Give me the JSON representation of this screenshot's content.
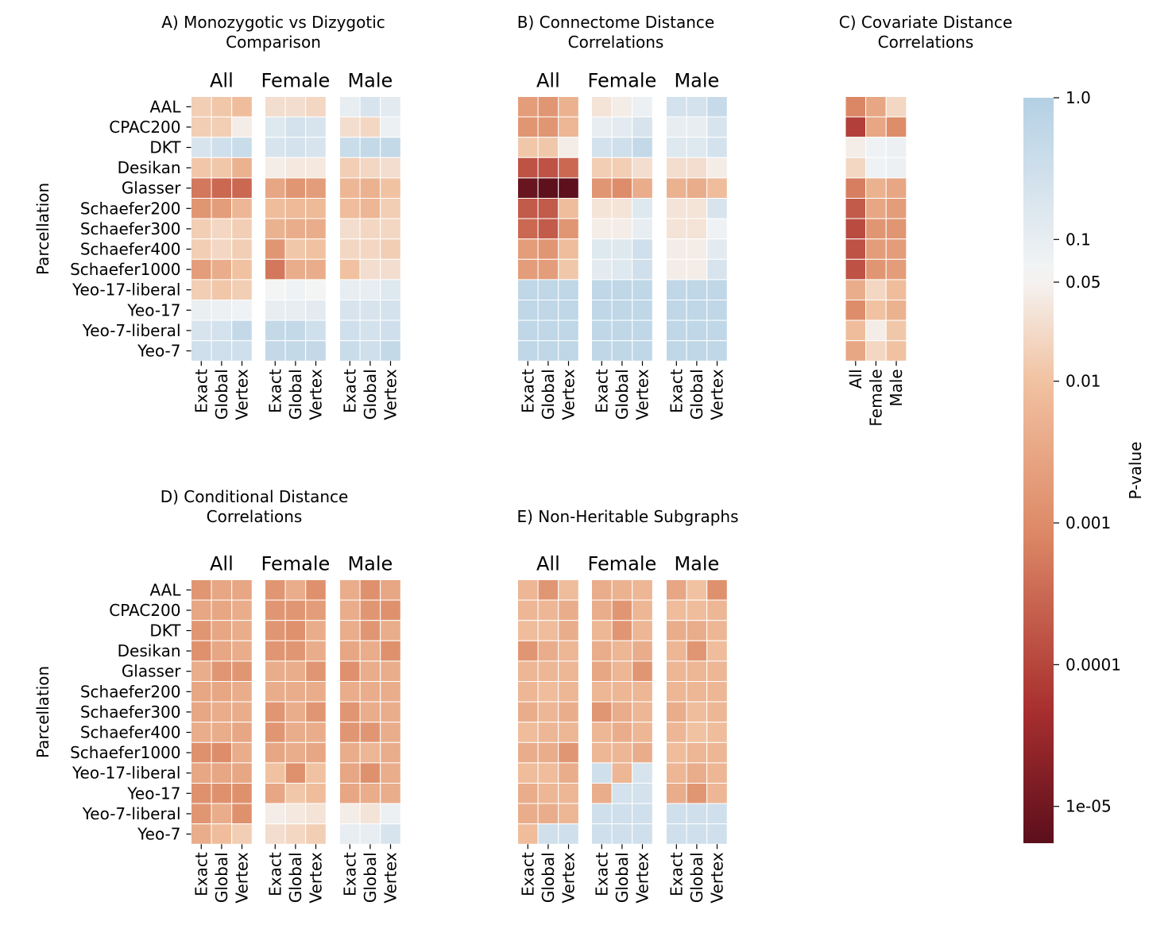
{
  "figure": {
    "ylabel": "Parcellation"
  },
  "parcellations": [
    "AAL",
    "CPAC200",
    "DKT",
    "Desikan",
    "Glasser",
    "Schaefer200",
    "Schaefer300",
    "Schaefer400",
    "Schaefer1000",
    "Yeo-17-liberal",
    "Yeo-17",
    "Yeo-7-liberal",
    "Yeo-7"
  ],
  "groups": [
    "All",
    "Female",
    "Male"
  ],
  "methods": [
    "Exact",
    "Global",
    "Vertex"
  ],
  "colorbar": {
    "label": "P-value",
    "ticks": [
      "1.0",
      "0.1",
      "0.05",
      "0.01",
      "0.001",
      "0.0001",
      "1e-05"
    ],
    "range": [
      5.5e-06,
      1.0
    ],
    "colors": {
      "high": "#b4d0e4",
      "threshold": "#f5f5f5",
      "mid": "#f1c2a1",
      "strong": "#dd8a67",
      "deep": "#a92f2f",
      "darkest": "#5b0f1c"
    }
  },
  "chart_data": [
    {
      "type": "heatmap",
      "panel": "A",
      "title_line1": "A) Monozygotic vs Dizygotic",
      "title_line2": "Comparison",
      "x_groups": [
        "All",
        "Female",
        "Male"
      ],
      "x": [
        "Exact",
        "Global",
        "Vertex"
      ],
      "y": [
        "AAL",
        "CPAC200",
        "DKT",
        "Desikan",
        "Glasser",
        "Schaefer200",
        "Schaefer300",
        "Schaefer400",
        "Schaefer1000",
        "Yeo-17-liberal",
        "Yeo-17",
        "Yeo-7-liberal",
        "Yeo-7"
      ],
      "p_values": [
        [
          0.015,
          0.012,
          0.008,
          0.025,
          0.025,
          0.02,
          0.1,
          0.2,
          0.12
        ],
        [
          0.015,
          0.015,
          0.04,
          0.15,
          0.25,
          0.2,
          0.025,
          0.02,
          0.08
        ],
        [
          0.2,
          0.3,
          0.4,
          0.2,
          0.25,
          0.2,
          0.4,
          0.5,
          0.5
        ],
        [
          0.012,
          0.012,
          0.005,
          0.04,
          0.035,
          0.035,
          0.015,
          0.02,
          0.025
        ],
        [
          0.0005,
          0.0003,
          0.0003,
          0.003,
          0.0015,
          0.002,
          0.006,
          0.005,
          0.01
        ],
        [
          0.0015,
          0.002,
          0.006,
          0.008,
          0.007,
          0.007,
          0.008,
          0.006,
          0.015
        ],
        [
          0.015,
          0.02,
          0.015,
          0.005,
          0.004,
          0.004,
          0.025,
          0.02,
          0.02
        ],
        [
          0.015,
          0.02,
          0.015,
          0.0015,
          0.012,
          0.01,
          0.02,
          0.02,
          0.015
        ],
        [
          0.002,
          0.004,
          0.01,
          0.0005,
          0.004,
          0.004,
          0.01,
          0.025,
          0.025
        ],
        [
          0.015,
          0.012,
          0.015,
          0.06,
          0.07,
          0.06,
          0.1,
          0.1,
          0.15
        ],
        [
          0.09,
          0.08,
          0.07,
          0.1,
          0.1,
          0.12,
          0.2,
          0.2,
          0.25
        ],
        [
          0.2,
          0.25,
          0.5,
          0.5,
          0.5,
          0.3,
          0.3,
          0.25,
          0.3
        ],
        [
          0.3,
          0.3,
          0.3,
          0.5,
          0.5,
          0.5,
          0.4,
          0.3,
          0.5
        ]
      ]
    },
    {
      "type": "heatmap",
      "panel": "B",
      "title_line1": "B) Connectome Distance",
      "title_line2": "Correlations",
      "x_groups": [
        "All",
        "Female",
        "Male"
      ],
      "x": [
        "Exact",
        "Global",
        "Vertex"
      ],
      "y": [
        "AAL",
        "CPAC200",
        "DKT",
        "Desikan",
        "Glasser",
        "Schaefer200",
        "Schaefer300",
        "Schaefer400",
        "Schaefer1000",
        "Yeo-17-liberal",
        "Yeo-17",
        "Yeo-7-liberal",
        "Yeo-7"
      ],
      "p_values": [
        [
          0.002,
          0.0015,
          0.005,
          0.03,
          0.04,
          0.08,
          0.25,
          0.25,
          0.45
        ],
        [
          0.0015,
          0.0015,
          0.006,
          0.1,
          0.12,
          0.2,
          0.1,
          0.1,
          0.2
        ],
        [
          0.012,
          0.012,
          0.04,
          0.25,
          0.3,
          0.5,
          0.15,
          0.15,
          0.25
        ],
        [
          0.00015,
          0.00015,
          0.0003,
          0.015,
          0.015,
          0.025,
          0.025,
          0.025,
          0.04
        ],
        [
          8e-06,
          6e-06,
          6e-06,
          0.0015,
          0.001,
          0.004,
          0.005,
          0.004,
          0.008
        ],
        [
          0.0002,
          0.0002,
          0.008,
          0.03,
          0.03,
          0.15,
          0.03,
          0.03,
          0.2
        ],
        [
          0.0003,
          0.0002,
          0.0015,
          0.04,
          0.04,
          0.1,
          0.03,
          0.03,
          0.07
        ],
        [
          0.002,
          0.0015,
          0.008,
          0.15,
          0.15,
          0.3,
          0.04,
          0.04,
          0.12
        ],
        [
          0.002,
          0.002,
          0.012,
          0.12,
          0.15,
          0.3,
          0.04,
          0.04,
          0.2
        ],
        [
          0.6,
          0.6,
          0.6,
          0.6,
          0.6,
          0.6,
          0.6,
          0.6,
          0.6
        ],
        [
          0.6,
          0.6,
          0.6,
          0.6,
          0.6,
          0.6,
          0.6,
          0.6,
          0.6
        ],
        [
          0.6,
          0.6,
          0.6,
          0.6,
          0.6,
          0.6,
          0.6,
          0.6,
          0.6
        ],
        [
          0.6,
          0.6,
          0.6,
          0.6,
          0.6,
          0.6,
          0.6,
          0.6,
          0.6
        ]
      ]
    },
    {
      "type": "heatmap",
      "panel": "C",
      "title_line1": "C) Covariate Distance",
      "title_line2": "Correlations",
      "x": [
        "All",
        "Female",
        "Male"
      ],
      "y": [
        "AAL",
        "CPAC200",
        "DKT",
        "Desikan",
        "Glasser",
        "Schaefer200",
        "Schaefer300",
        "Schaefer400",
        "Schaefer1000",
        "Yeo-17-liberal",
        "Yeo-17",
        "Yeo-7-liberal",
        "Yeo-7"
      ],
      "p_values": [
        [
          0.0008,
          0.003,
          0.02
        ],
        [
          8e-05,
          0.003,
          0.001
        ],
        [
          0.04,
          0.07,
          0.08
        ],
        [
          0.02,
          0.07,
          0.08
        ],
        [
          0.0006,
          0.005,
          0.003
        ],
        [
          0.0002,
          0.003,
          0.002
        ],
        [
          0.00012,
          0.0015,
          0.0015
        ],
        [
          0.00015,
          0.002,
          0.002
        ],
        [
          0.00015,
          0.0015,
          0.002
        ],
        [
          0.004,
          0.02,
          0.008
        ],
        [
          0.001,
          0.01,
          0.005
        ],
        [
          0.008,
          0.04,
          0.012
        ],
        [
          0.003,
          0.02,
          0.01
        ]
      ]
    },
    {
      "type": "heatmap",
      "panel": "D",
      "title_line1": "D) Conditional Distance",
      "title_line2": "Correlations",
      "x_groups": [
        "All",
        "Female",
        "Male"
      ],
      "x": [
        "Exact",
        "Global",
        "Vertex"
      ],
      "y": [
        "AAL",
        "CPAC200",
        "DKT",
        "Desikan",
        "Glasser",
        "Schaefer200",
        "Schaefer300",
        "Schaefer400",
        "Schaefer1000",
        "Yeo-17-liberal",
        "Yeo-17",
        "Yeo-7-liberal",
        "Yeo-7"
      ],
      "p_values": [
        [
          0.0015,
          0.003,
          0.003,
          0.0015,
          0.004,
          0.0012,
          0.004,
          0.0012,
          0.003
        ],
        [
          0.003,
          0.003,
          0.004,
          0.0015,
          0.0015,
          0.002,
          0.004,
          0.0015,
          0.0012
        ],
        [
          0.0015,
          0.003,
          0.004,
          0.0015,
          0.0012,
          0.004,
          0.004,
          0.0015,
          0.004
        ],
        [
          0.0012,
          0.003,
          0.004,
          0.0015,
          0.0015,
          0.004,
          0.003,
          0.004,
          0.0012
        ],
        [
          0.004,
          0.0015,
          0.0015,
          0.004,
          0.004,
          0.0015,
          0.0012,
          0.004,
          0.004
        ],
        [
          0.003,
          0.003,
          0.004,
          0.004,
          0.004,
          0.004,
          0.004,
          0.004,
          0.004
        ],
        [
          0.003,
          0.004,
          0.004,
          0.0015,
          0.004,
          0.0015,
          0.0015,
          0.004,
          0.004
        ],
        [
          0.004,
          0.004,
          0.003,
          0.0015,
          0.004,
          0.004,
          0.0015,
          0.0015,
          0.004
        ],
        [
          0.0012,
          0.001,
          0.004,
          0.003,
          0.004,
          0.003,
          0.004,
          0.006,
          0.004
        ],
        [
          0.003,
          0.003,
          0.003,
          0.01,
          0.0012,
          0.01,
          0.003,
          0.0012,
          0.004
        ],
        [
          0.0012,
          0.0012,
          0.0012,
          0.003,
          0.012,
          0.008,
          0.003,
          0.004,
          0.004
        ],
        [
          0.0015,
          0.004,
          0.0012,
          0.04,
          0.035,
          0.03,
          0.04,
          0.03,
          0.08
        ],
        [
          0.004,
          0.008,
          0.015,
          0.025,
          0.02,
          0.015,
          0.1,
          0.1,
          0.2
        ]
      ]
    },
    {
      "type": "heatmap",
      "panel": "E",
      "title_line1": "E) Non-Heritable Subgraphs",
      "title_line2": "",
      "x_groups": [
        "All",
        "Female",
        "Male"
      ],
      "x": [
        "Exact",
        "Global",
        "Vertex"
      ],
      "y": [
        "AAL",
        "CPAC200",
        "DKT",
        "Desikan",
        "Glasser",
        "Schaefer200",
        "Schaefer300",
        "Schaefer400",
        "Schaefer1000",
        "Yeo-17-liberal",
        "Yeo-17",
        "Yeo-7-liberal",
        "Yeo-7"
      ],
      "p_values": [
        [
          0.006,
          0.0015,
          0.008,
          0.004,
          0.005,
          0.006,
          0.003,
          0.01,
          0.0012
        ],
        [
          0.006,
          0.006,
          0.004,
          0.004,
          0.0015,
          0.006,
          0.008,
          0.008,
          0.006
        ],
        [
          0.008,
          0.008,
          0.004,
          0.006,
          0.0015,
          0.006,
          0.004,
          0.004,
          0.006
        ],
        [
          0.0015,
          0.004,
          0.006,
          0.004,
          0.006,
          0.004,
          0.006,
          0.0015,
          0.008
        ],
        [
          0.006,
          0.006,
          0.006,
          0.003,
          0.006,
          0.0015,
          0.006,
          0.006,
          0.006
        ],
        [
          0.006,
          0.008,
          0.006,
          0.006,
          0.006,
          0.006,
          0.006,
          0.006,
          0.006
        ],
        [
          0.004,
          0.006,
          0.004,
          0.0015,
          0.004,
          0.006,
          0.004,
          0.008,
          0.006
        ],
        [
          0.008,
          0.006,
          0.006,
          0.006,
          0.004,
          0.006,
          0.006,
          0.01,
          0.008
        ],
        [
          0.004,
          0.004,
          0.0015,
          0.006,
          0.006,
          0.004,
          0.008,
          0.006,
          0.006
        ],
        [
          0.008,
          0.008,
          0.004,
          0.3,
          0.006,
          0.2,
          0.006,
          0.004,
          0.006
        ],
        [
          0.004,
          0.006,
          0.006,
          0.004,
          0.25,
          0.25,
          0.004,
          0.0015,
          0.006
        ],
        [
          0.004,
          0.004,
          0.006,
          0.3,
          0.3,
          0.3,
          0.3,
          0.3,
          0.3
        ],
        [
          0.008,
          0.3,
          0.3,
          0.3,
          0.3,
          0.3,
          0.3,
          0.3,
          0.3
        ]
      ]
    }
  ]
}
